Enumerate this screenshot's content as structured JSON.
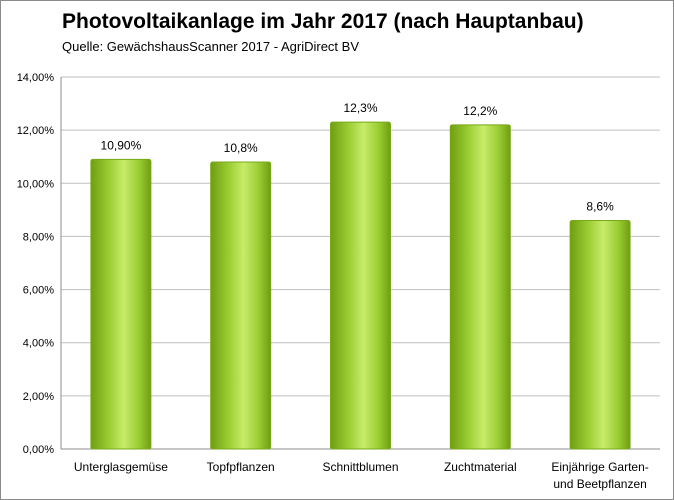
{
  "chart_data": {
    "type": "bar",
    "title": "Photovoltaikanlage im Jahr 2017 (nach Hauptanbau)",
    "subtitle": "Quelle: GewächshausScanner 2017 - AgriDirect BV",
    "categories": [
      [
        "Unterglasgemüse"
      ],
      [
        "Topfpflanzen"
      ],
      [
        "Schnittblumen"
      ],
      [
        "Zuchtmaterial"
      ],
      [
        "Einjährige Garten-",
        "und Beetpflanzen"
      ]
    ],
    "values": [
      10.9,
      10.8,
      12.3,
      12.2,
      8.6
    ],
    "data_labels": [
      "10,90%",
      "10,8%",
      "12,3%",
      "12,2%",
      "8,6%"
    ],
    "ylim": [
      0,
      14
    ],
    "yticks": [
      {
        "value": 0,
        "label": "0,00%"
      },
      {
        "value": 2,
        "label": "2,00%"
      },
      {
        "value": 4,
        "label": "4,00%"
      },
      {
        "value": 6,
        "label": "6,00%"
      },
      {
        "value": 8,
        "label": "8,00%"
      },
      {
        "value": 10,
        "label": "10,00%"
      },
      {
        "value": 12,
        "label": "12,00%"
      },
      {
        "value": 14,
        "label": "14,00%"
      }
    ],
    "grid": true,
    "legend": "none",
    "colors": {
      "bar": "#9acd32",
      "bar_light": "#c8ec6a",
      "bar_dark": "#6f9e12",
      "grid": "#bfbfbf"
    }
  }
}
